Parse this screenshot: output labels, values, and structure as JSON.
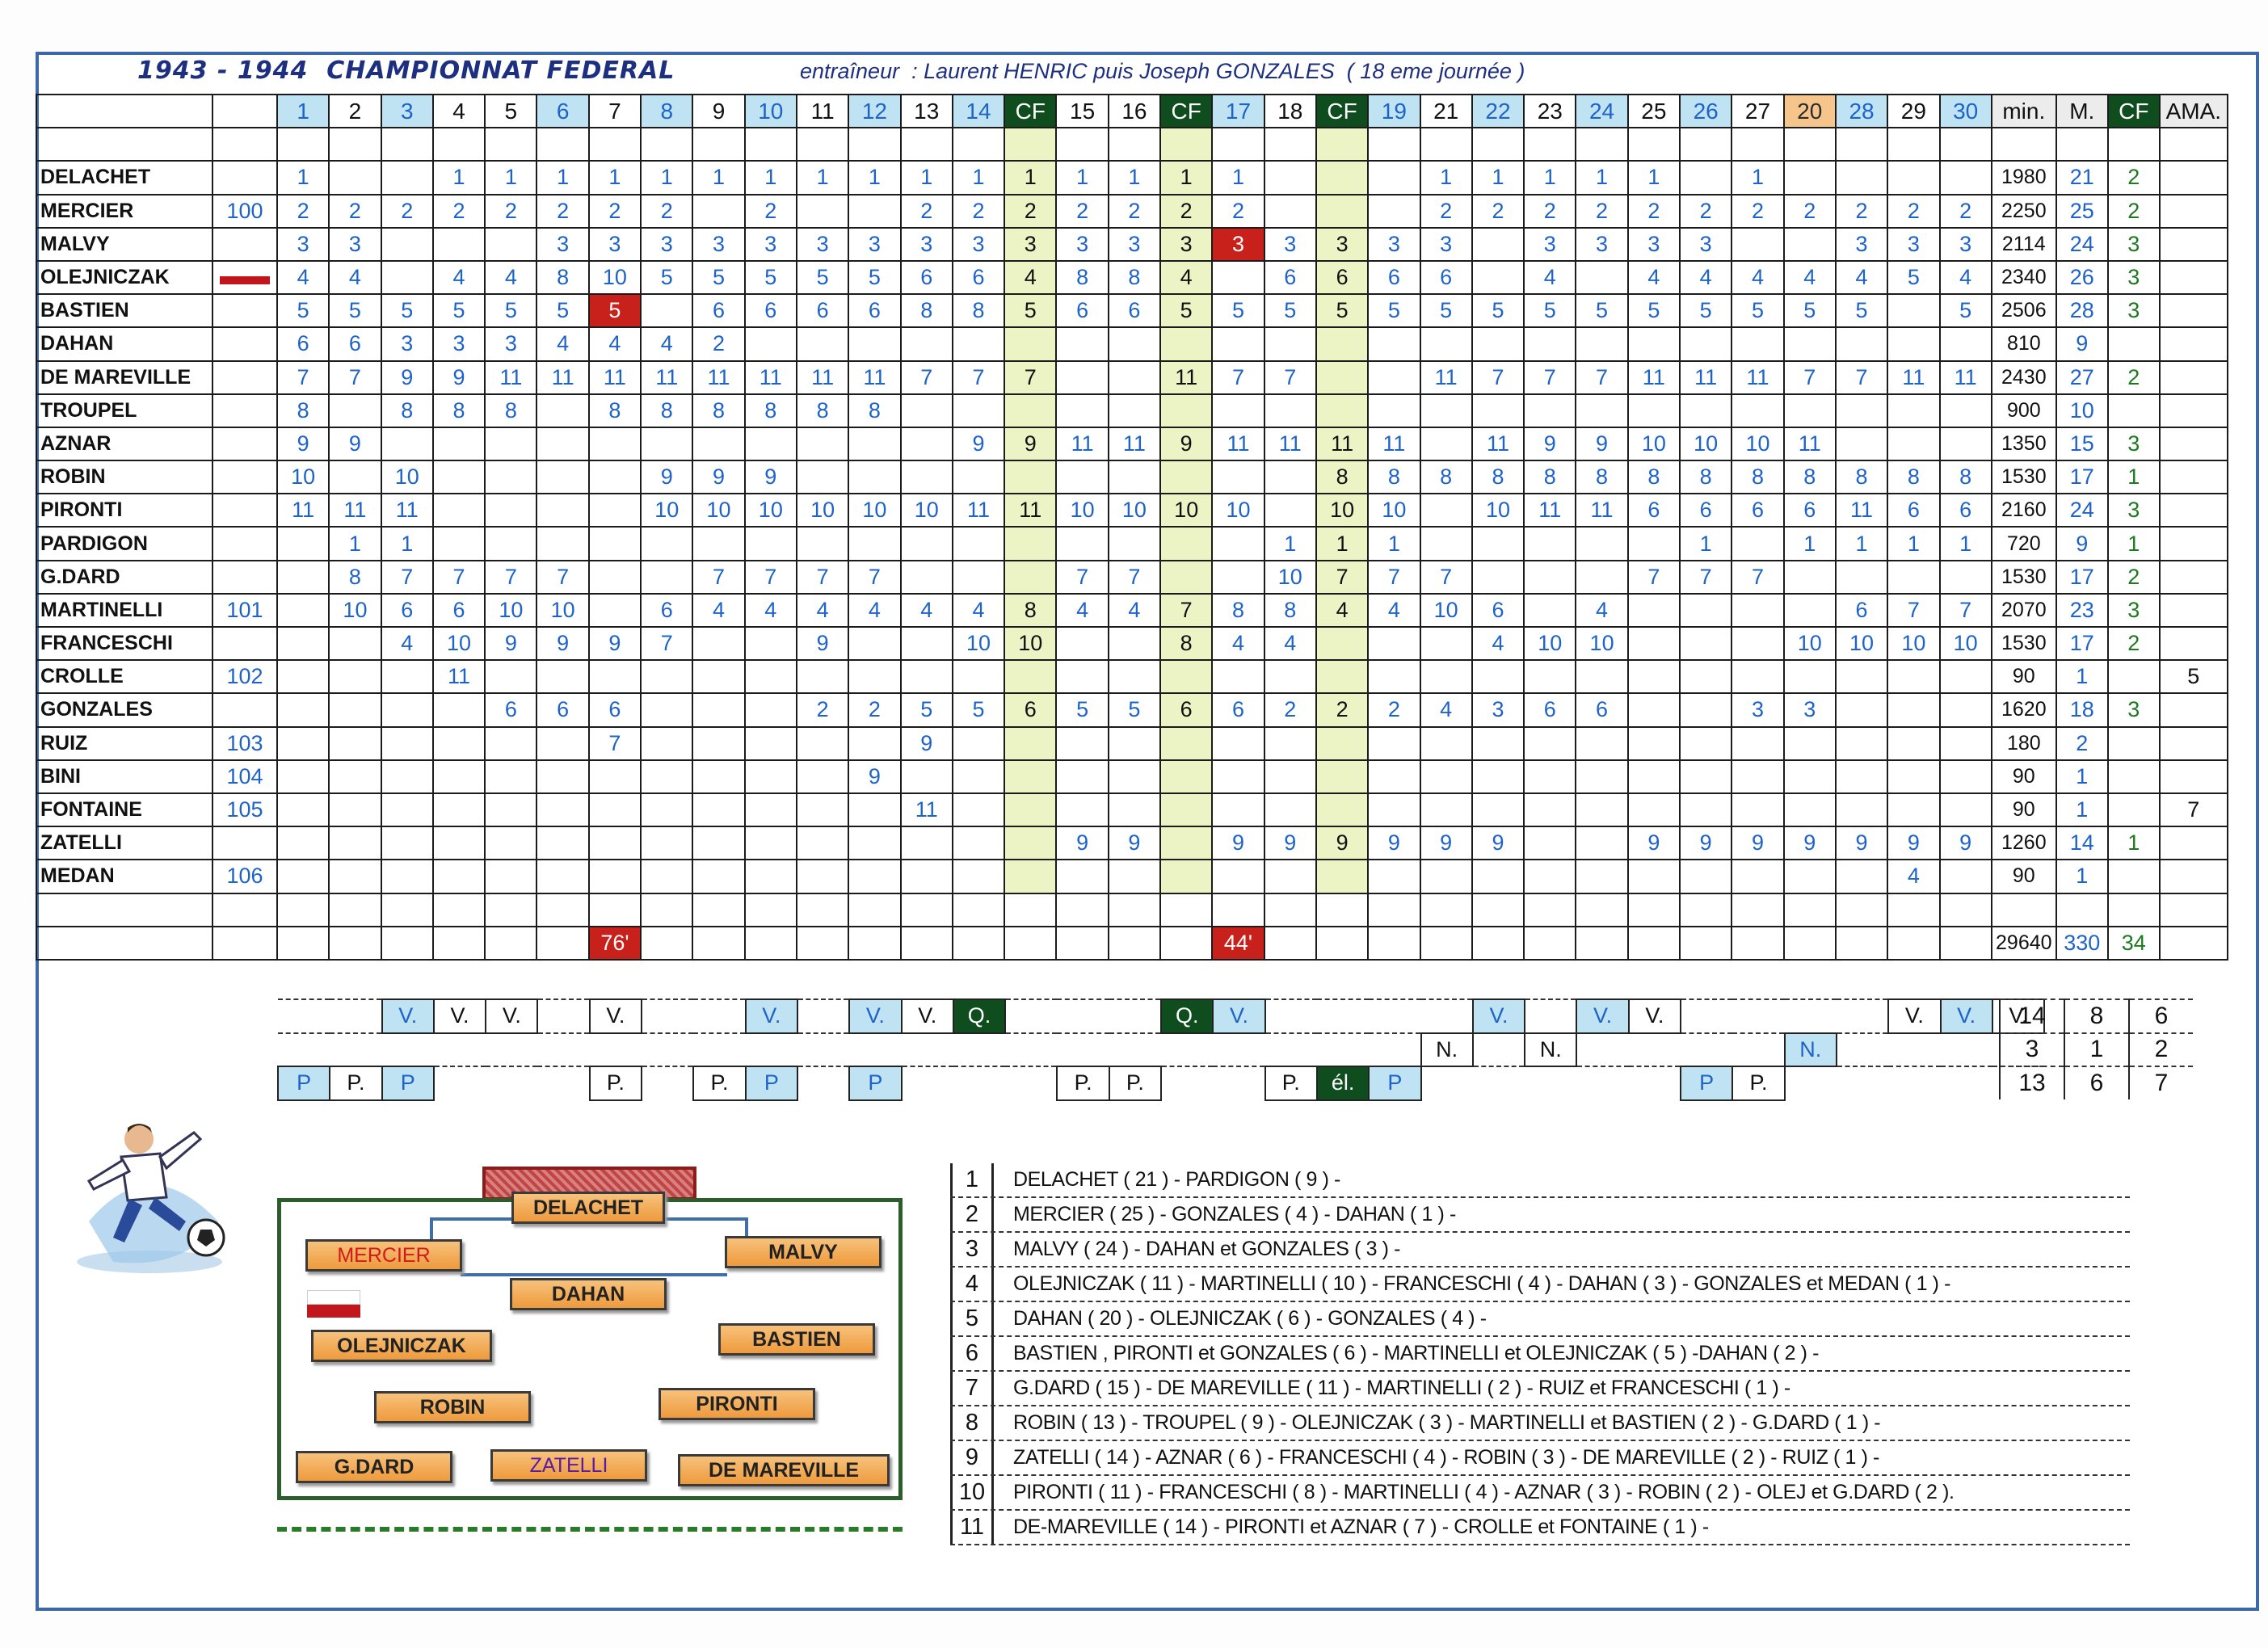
{
  "title": "1943 - 1944  CHAMPIONNAT FEDERAL",
  "coach": "entraîneur  : Laurent HENRIC puis Joseph GONZALES  ( 18 eme journée )",
  "colors": {
    "frame": "#3b68a8",
    "home_blue": "#bfe3f2",
    "cup_green": "#0f4d1f",
    "orange": "#f6c58c",
    "red": "#c8211c"
  },
  "matchdays": [
    "1",
    "2",
    "3",
    "4",
    "5",
    "6",
    "7",
    "8",
    "9",
    "10",
    "11",
    "12",
    "13",
    "14",
    "CF",
    "15",
    "16",
    "CF",
    "17",
    "18",
    "CF",
    "19",
    "21",
    "22",
    "23",
    "24",
    "25",
    "26",
    "27",
    "20",
    "28",
    "29",
    "30"
  ],
  "matchday_styles": [
    "b",
    "",
    "b",
    "",
    "",
    "b",
    "",
    "b",
    "",
    "b",
    "",
    "b",
    "",
    "b",
    "cf",
    "",
    "",
    "cf",
    "b",
    "",
    "cf",
    "b",
    "",
    "b",
    "",
    "b",
    "",
    "b",
    "",
    "o",
    "b",
    "",
    "b"
  ],
  "stat_headers": {
    "min": "min.",
    "matches": "M.",
    "cf": "CF",
    "ama": "AMA."
  },
  "players": [
    {
      "name": "DELACHET",
      "color": "black",
      "no": "",
      "cells": [
        "1",
        "",
        "",
        "1",
        "1",
        "1",
        "1",
        "1",
        "1",
        "1",
        "1",
        "1",
        "1",
        "1",
        "1",
        "1",
        "1",
        "1",
        "1",
        "",
        "",
        "",
        "1",
        "1",
        "1",
        "1",
        "1",
        "",
        "1",
        "",
        "",
        "",
        ""
      ],
      "min": "1980",
      "m": "21",
      "cf": "2",
      "ama": ""
    },
    {
      "name": "MERCIER",
      "color": "red",
      "no": "100",
      "cells": [
        "2",
        "2",
        "2",
        "2",
        "2",
        "2",
        "2",
        "2",
        "",
        "2",
        "",
        "",
        "2",
        "2",
        "2",
        "2",
        "2",
        "2",
        "2",
        "",
        "",
        "",
        "2",
        "2",
        "2",
        "2",
        "2",
        "2",
        "2",
        "2",
        "2",
        "2",
        "2"
      ],
      "min": "2250",
      "m": "25",
      "cf": "2",
      "ama": ""
    },
    {
      "name": "MALVY",
      "color": "purple",
      "no": "",
      "cells": [
        "3",
        "3",
        "",
        "",
        "",
        "3",
        "3",
        "3",
        "3",
        "3",
        "3",
        "3",
        "3",
        "3",
        "3",
        "3",
        "3",
        "3",
        "3",
        "3",
        "3",
        "3",
        "3",
        "",
        "3",
        "3",
        "3",
        "3",
        "",
        "",
        "3",
        "3",
        "3"
      ],
      "min": "2114",
      "m": "24",
      "cf": "3",
      "ama": ""
    },
    {
      "name": "OLEJNICZAK",
      "color": "black",
      "no": "flag",
      "cells": [
        "4",
        "4",
        "",
        "4",
        "4",
        "8",
        "10",
        "5",
        "5",
        "5",
        "5",
        "5",
        "6",
        "6",
        "4",
        "8",
        "8",
        "4",
        "",
        "6",
        "6",
        "6",
        "6",
        "",
        "4",
        "",
        "4",
        "4",
        "4",
        "4",
        "4",
        "5",
        "4"
      ],
      "min": "2340",
      "m": "26",
      "cf": "3",
      "ama": ""
    },
    {
      "name": "BASTIEN",
      "color": "black",
      "no": "",
      "cells": [
        "5",
        "5",
        "5",
        "5",
        "5",
        "5",
        "5",
        "",
        "6",
        "6",
        "6",
        "6",
        "8",
        "8",
        "5",
        "6",
        "6",
        "5",
        "5",
        "5",
        "5",
        "5",
        "5",
        "5",
        "5",
        "5",
        "5",
        "5",
        "5",
        "5",
        "5",
        "",
        "5"
      ],
      "min": "2506",
      "m": "28",
      "cf": "3",
      "ama": ""
    },
    {
      "name": "DAHAN",
      "color": "black",
      "no": "",
      "cells": [
        "6",
        "6",
        "3",
        "3",
        "3",
        "4",
        "4",
        "4",
        "2",
        "",
        "",
        "",
        "",
        "",
        "",
        "",
        "",
        "",
        "",
        "",
        "",
        "",
        "",
        "",
        "",
        "",
        "",
        "",
        "",
        "",
        "",
        "",
        ""
      ],
      "min": "810",
      "m": "9",
      "cf": "",
      "ama": ""
    },
    {
      "name": "DE MAREVILLE",
      "color": "black",
      "no": "",
      "cells": [
        "7",
        "7",
        "9",
        "9",
        "11",
        "11",
        "11",
        "11",
        "11",
        "11",
        "11",
        "11",
        "7",
        "7",
        "7",
        "",
        "",
        "11",
        "7",
        "7",
        "",
        "",
        "11",
        "7",
        "7",
        "7",
        "11",
        "11",
        "11",
        "7",
        "7",
        "11",
        "11"
      ],
      "min": "2430",
      "m": "27",
      "cf": "2",
      "ama": ""
    },
    {
      "name": "TROUPEL",
      "color": "purple",
      "no": "",
      "cells": [
        "8",
        "",
        "8",
        "8",
        "8",
        "",
        "8",
        "8",
        "8",
        "8",
        "8",
        "8",
        "",
        "",
        "",
        "",
        "",
        "",
        "",
        "",
        "",
        "",
        "",
        "",
        "",
        "",
        "",
        "",
        "",
        "",
        "",
        "",
        ""
      ],
      "min": "900",
      "m": "10",
      "cf": "",
      "ama": ""
    },
    {
      "name": "AZNAR",
      "color": "black",
      "no": "",
      "cells": [
        "9",
        "9",
        "",
        "",
        "",
        "",
        "",
        "",
        "",
        "",
        "",
        "",
        "",
        "9",
        "9",
        "11",
        "11",
        "9",
        "11",
        "11",
        "11",
        "11",
        "",
        "11",
        "9",
        "9",
        "10",
        "10",
        "10",
        "11",
        "",
        "",
        ""
      ],
      "min": "1350",
      "m": "15",
      "cf": "3",
      "ama": ""
    },
    {
      "name": "ROBIN",
      "color": "black",
      "no": "",
      "cells": [
        "10",
        "",
        "10",
        "",
        "",
        "",
        "",
        "9",
        "9",
        "9",
        "",
        "",
        "",
        "",
        "",
        "",
        "",
        "",
        "",
        "",
        "8",
        "8",
        "8",
        "8",
        "8",
        "8",
        "8",
        "8",
        "8",
        "8",
        "8",
        "8",
        "8"
      ],
      "min": "1530",
      "m": "17",
      "cf": "1",
      "ama": ""
    },
    {
      "name": "PIRONTI",
      "color": "black",
      "no": "",
      "cells": [
        "11",
        "11",
        "11",
        "",
        "",
        "",
        "",
        "10",
        "10",
        "10",
        "10",
        "10",
        "10",
        "11",
        "11",
        "10",
        "10",
        "10",
        "10",
        "",
        "10",
        "10",
        "",
        "10",
        "11",
        "11",
        "6",
        "6",
        "6",
        "6",
        "11",
        "6",
        "6"
      ],
      "min": "2160",
      "m": "24",
      "cf": "3",
      "ama": ""
    },
    {
      "name": "PARDIGON",
      "color": "purple",
      "no": "",
      "cells": [
        "",
        "1",
        "1",
        "",
        "",
        "",
        "",
        "",
        "",
        "",
        "",
        "",
        "",
        "",
        "",
        "",
        "",
        "",
        "",
        "1",
        "1",
        "1",
        "",
        "",
        "",
        "",
        "",
        "1",
        "",
        "1",
        "1",
        "1",
        "1"
      ],
      "min": "720",
      "m": "9",
      "cf": "1",
      "ama": ""
    },
    {
      "name": "G.DARD",
      "color": "black",
      "no": "",
      "cells": [
        "",
        "8",
        "7",
        "7",
        "7",
        "7",
        "",
        "",
        "7",
        "7",
        "7",
        "7",
        "",
        "",
        "",
        "7",
        "7",
        "",
        "",
        "10",
        "7",
        "7",
        "7",
        "",
        "",
        "",
        "7",
        "7",
        "7",
        "",
        "",
        "",
        ""
      ],
      "min": "1530",
      "m": "17",
      "cf": "2",
      "ama": ""
    },
    {
      "name": "MARTINELLI",
      "color": "black",
      "no": "101",
      "cells": [
        "",
        "10",
        "6",
        "6",
        "10",
        "10",
        "",
        "6",
        "4",
        "4",
        "4",
        "4",
        "4",
        "4",
        "8",
        "4",
        "4",
        "7",
        "8",
        "8",
        "4",
        "4",
        "10",
        "6",
        "",
        "4",
        "",
        "",
        "",
        "",
        "6",
        "7",
        "7"
      ],
      "min": "2070",
      "m": "23",
      "cf": "3",
      "ama": ""
    },
    {
      "name": "FRANCESCHI",
      "color": "black",
      "no": "",
      "cells": [
        "",
        "",
        "4",
        "10",
        "9",
        "9",
        "9",
        "7",
        "",
        "",
        "9",
        "",
        "",
        "10",
        "10",
        "",
        "",
        "8",
        "4",
        "4",
        "",
        "",
        "",
        "4",
        "10",
        "10",
        "",
        "",
        "",
        "10",
        "10",
        "10",
        "10"
      ],
      "min": "1530",
      "m": "17",
      "cf": "2",
      "ama": ""
    },
    {
      "name": "CROLLE",
      "color": "red",
      "no": "102",
      "cells": [
        "",
        "",
        "",
        "11",
        "",
        "",
        "",
        "",
        "",
        "",
        "",
        "",
        "",
        "",
        "",
        "",
        "",
        "",
        "",
        "",
        "",
        "",
        "",
        "",
        "",
        "",
        "",
        "",
        "",
        "",
        "",
        "",
        ""
      ],
      "min": "90",
      "m": "1",
      "cf": "",
      "ama": "5"
    },
    {
      "name": "GONZALES",
      "color": "black",
      "no": "",
      "cells": [
        "",
        "",
        "",
        "",
        "6",
        "6",
        "6",
        "",
        "",
        "",
        "2",
        "2",
        "5",
        "5",
        "6",
        "5",
        "5",
        "6",
        "6",
        "2",
        "2",
        "2",
        "4",
        "3",
        "6",
        "6",
        "",
        "",
        "3",
        "3",
        "",
        "",
        ""
      ],
      "min": "1620",
      "m": "18",
      "cf": "3",
      "ama": ""
    },
    {
      "name": "RUIZ",
      "color": "red",
      "no": "103",
      "cells": [
        "",
        "",
        "",
        "",
        "",
        "",
        "7",
        "",
        "",
        "",
        "",
        "",
        "9",
        "",
        "",
        "",
        "",
        "",
        "",
        "",
        "",
        "",
        "",
        "",
        "",
        "",
        "",
        "",
        "",
        "",
        "",
        "",
        ""
      ],
      "min": "180",
      "m": "2",
      "cf": "",
      "ama": ""
    },
    {
      "name": "BINI",
      "color": "red",
      "no": "104",
      "cells": [
        "",
        "",
        "",
        "",
        "",
        "",
        "",
        "",
        "",
        "",
        "",
        "9",
        "",
        "",
        "",
        "",
        "",
        "",
        "",
        "",
        "",
        "",
        "",
        "",
        "",
        "",
        "",
        "",
        "",
        "",
        "",
        "",
        ""
      ],
      "min": "90",
      "m": "1",
      "cf": "",
      "ama": ""
    },
    {
      "name": "FONTAINE",
      "color": "red",
      "no": "105",
      "cells": [
        "",
        "",
        "",
        "",
        "",
        "",
        "",
        "",
        "",
        "",
        "",
        "",
        "11",
        "",
        "",
        "",
        "",
        "",
        "",
        "",
        "",
        "",
        "",
        "",
        "",
        "",
        "",
        "",
        "",
        "",
        "",
        "",
        ""
      ],
      "min": "90",
      "m": "1",
      "cf": "",
      "ama": "7"
    },
    {
      "name": "ZATELLI",
      "color": "purple",
      "no": "",
      "cells": [
        "",
        "",
        "",
        "",
        "",
        "",
        "",
        "",
        "",
        "",
        "",
        "",
        "",
        "",
        "",
        "9",
        "9",
        "",
        "9",
        "9",
        "9",
        "9",
        "9",
        "9",
        "",
        "",
        "9",
        "9",
        "9",
        "9",
        "9",
        "9",
        "9"
      ],
      "min": "1260",
      "m": "14",
      "cf": "1",
      "ama": ""
    },
    {
      "name": "MEDAN",
      "color": "red",
      "no": "106",
      "cells": [
        "",
        "",
        "",
        "",
        "",
        "",
        "",
        "",
        "",
        "",
        "",
        "",
        "",
        "",
        "",
        "",
        "",
        "",
        "",
        "",
        "",
        "",
        "",
        "",
        "",
        "",
        "",
        "",
        "",
        "",
        "",
        "4",
        ""
      ],
      "min": "90",
      "m": "1",
      "cf": "",
      "ama": ""
    }
  ],
  "red_cells": [
    {
      "row": 2,
      "col": 18
    },
    {
      "row": 4,
      "col": 6
    }
  ],
  "totals": {
    "cells": {
      "6": "76'",
      "18": "44'"
    },
    "min": "29640",
    "m": "330",
    "cf": "34"
  },
  "results": {
    "row_v": [
      "",
      "",
      "V.",
      "V.",
      "V.",
      "",
      "V.",
      "",
      "",
      "V.",
      "",
      "V.",
      "V.",
      "Q.",
      "",
      "",
      "",
      "Q.",
      "V.",
      "",
      "",
      "",
      "",
      "V.",
      "",
      "V.",
      "V.",
      "",
      "",
      "",
      "",
      "V.",
      "V.",
      "V."
    ],
    "row_n": [
      "",
      "",
      "",
      "",
      "",
      "",
      "",
      "",
      "",
      "",
      "",
      "",
      "",
      "",
      "",
      "",
      "",
      "",
      "",
      "",
      "",
      "",
      "N.",
      "",
      "N.",
      "",
      "",
      "",
      "",
      "N.",
      "",
      "",
      "",
      ""
    ],
    "row_p": [
      "P",
      "P.",
      "P",
      "",
      "",
      "",
      "P.",
      "",
      "P.",
      "P",
      "",
      "P",
      "",
      "",
      "",
      "P.",
      "P.",
      "",
      "",
      "P.",
      "él.",
      "P",
      "",
      "",
      "",
      "",
      "",
      "P",
      "P.",
      "",
      "",
      "",
      "",
      ""
    ],
    "summary": [
      [
        "14",
        "8",
        "6"
      ],
      [
        "3",
        "1",
        "2"
      ],
      [
        "13",
        "6",
        "7"
      ]
    ]
  },
  "lineup": {
    "gk": "DELACHET",
    "players": [
      "MERCIER",
      "MALVY",
      "DAHAN",
      "OLEJNICZAK",
      "BASTIEN",
      "ROBIN",
      "PIRONTI",
      "G.DARD",
      "ZATELLI",
      "DE MAREVILLE"
    ]
  },
  "scorers": [
    {
      "no": "1",
      "text": "DELACHET ( 21 ) - PARDIGON ( 9 ) -"
    },
    {
      "no": "2",
      "text": "MERCIER ( 25 ) - GONZALES ( 4 ) - DAHAN ( 1 ) -"
    },
    {
      "no": "3",
      "text": "MALVY ( 24 ) - DAHAN et GONZALES ( 3 ) -"
    },
    {
      "no": "4",
      "text": "OLEJNICZAK ( 11 ) - MARTINELLI ( 10 ) - FRANCESCHI ( 4 ) - DAHAN ( 3 ) - GONZALES et MEDAN ( 1 ) -"
    },
    {
      "no": "5",
      "text": "DAHAN ( 20 ) - OLEJNICZAK ( 6 ) - GONZALES ( 4 ) -"
    },
    {
      "no": "6",
      "text": "BASTIEN , PIRONTI et GONZALES ( 6 ) - MARTINELLI et OLEJNICZAK ( 5 ) -DAHAN ( 2 ) -"
    },
    {
      "no": "7",
      "text": "G.DARD ( 15 ) - DE MAREVILLE ( 11 ) - MARTINELLI ( 2 ) - RUIZ et FRANCESCHI ( 1 ) -"
    },
    {
      "no": "8",
      "text": "ROBIN ( 13 ) - TROUPEL ( 9 ) - OLEJNICZAK ( 3 ) - MARTINELLI et BASTIEN ( 2 ) - G.DARD ( 1 ) -"
    },
    {
      "no": "9",
      "text": "ZATELLI ( 14 ) - AZNAR ( 6 ) - FRANCESCHI ( 4 ) - ROBIN ( 3 ) - DE MAREVILLE ( 2 ) - RUIZ ( 1 ) -"
    },
    {
      "no": "10",
      "text": "PIRONTI ( 11 ) - FRANCESCHI ( 8 ) - MARTINELLI ( 4 ) - AZNAR ( 3 ) - ROBIN ( 2 ) - OLEJ et G.DARD ( 2 )."
    },
    {
      "no": "11",
      "text": "DE-MAREVILLE ( 14 ) - PIRONTI et AZNAR ( 7 ) - CROLLE et FONTAINE ( 1 ) -"
    }
  ]
}
